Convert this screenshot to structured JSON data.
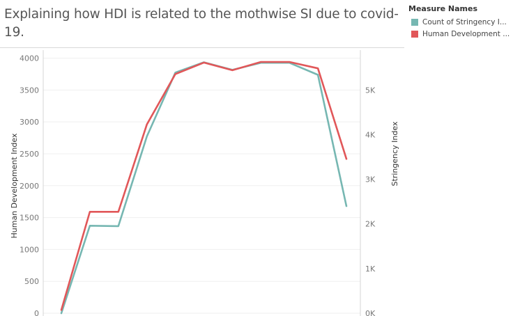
{
  "title": "Explaining how HDI is  related to  the mothwise SI  due to covid-19.",
  "legend": {
    "title": "Measure Names",
    "items": [
      {
        "label": "Count of Stringency I...",
        "color": "#76b7b2"
      },
      {
        "label": "Human Development ...",
        "color": "#e15759"
      }
    ]
  },
  "chart_data": {
    "type": "line",
    "x": [
      1,
      2,
      3,
      4,
      5,
      6,
      7,
      8,
      9,
      10,
      11
    ],
    "series": [
      {
        "name": "Count of Stringency I...",
        "axis": "right",
        "color": "#76b7b2",
        "values": [
          0,
          1960,
          1950,
          3960,
          5390,
          5620,
          5450,
          5610,
          5610,
          5340,
          2400
        ]
      },
      {
        "name": "Human Development ...",
        "axis": "left",
        "color": "#e15759",
        "values": [
          50,
          1590,
          1590,
          2960,
          3750,
          3930,
          3810,
          3940,
          3940,
          3840,
          2420
        ]
      }
    ],
    "y_left": {
      "label": "Human Development Index",
      "ylim": [
        0,
        4000
      ],
      "ticks": [
        0,
        500,
        1000,
        1500,
        2000,
        2500,
        3000,
        3500,
        4000
      ],
      "tick_labels": [
        "0",
        "500",
        "1000",
        "1500",
        "2000",
        "2500",
        "3000",
        "3500",
        "4000"
      ]
    },
    "y_right": {
      "label": "Stringency Index",
      "ylim": [
        0,
        5714
      ],
      "ticks": [
        0,
        1000,
        2000,
        3000,
        4000,
        5000
      ],
      "tick_labels": [
        "0K",
        "1K",
        "2K",
        "3K",
        "4K",
        "5K"
      ]
    },
    "grid": true
  }
}
